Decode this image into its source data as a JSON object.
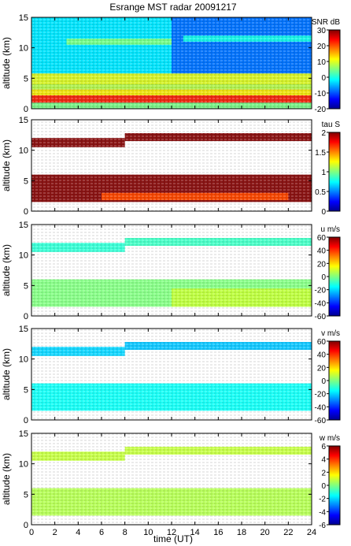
{
  "chart_data": {
    "type": "heatmap",
    "title": "Esrange MST radar 20091217",
    "xlabel": "time (UT)",
    "xlim": [
      0,
      24
    ],
    "x_ticks": [
      "0",
      "2",
      "4",
      "6",
      "8",
      "10",
      "12",
      "14",
      "16",
      "18",
      "20",
      "22",
      "24"
    ],
    "panels": [
      {
        "id": "snr",
        "ylabel": "altitude (km)",
        "ylim": [
          0,
          15
        ],
        "y_ticks": [
          "0",
          "5",
          "10",
          "15"
        ],
        "colorbar_label": "SNR dB",
        "clim": [
          -20,
          30
        ],
        "colorbar_ticks": [
          "-20",
          "-10",
          "0",
          "10",
          "20",
          "30"
        ],
        "background": "#2a5fd0",
        "layers": [
          {
            "x": [
              0,
              24
            ],
            "y": [
              0,
              1.0
            ],
            "value": 5
          },
          {
            "x": [
              0,
              24
            ],
            "y": [
              1.0,
              2.2
            ],
            "value": 22
          },
          {
            "x": [
              0,
              24
            ],
            "y": [
              2.2,
              3.2
            ],
            "value": 12
          },
          {
            "x": [
              0,
              24
            ],
            "y": [
              3.2,
              4.0
            ],
            "value": 8
          },
          {
            "x": [
              0,
              24
            ],
            "y": [
              4.0,
              5.8
            ],
            "value": 10
          },
          {
            "x": [
              0,
              12
            ],
            "y": [
              5.8,
              15
            ],
            "value": -2
          },
          {
            "x": [
              12,
              24
            ],
            "y": [
              5.8,
              15
            ],
            "value": -8
          },
          {
            "x": [
              3,
              12
            ],
            "y": [
              10.5,
              11.5
            ],
            "value": 5
          },
          {
            "x": [
              13,
              24
            ],
            "y": [
              11,
              12
            ],
            "value": 0
          }
        ]
      },
      {
        "id": "tau",
        "ylabel": "altitude (km)",
        "ylim": [
          0,
          15
        ],
        "y_ticks": [
          "0",
          "5",
          "10",
          "15"
        ],
        "colorbar_label": "tau S",
        "clim": [
          0,
          2
        ],
        "colorbar_ticks": [
          "0",
          "0.5",
          "1",
          "1.5",
          "2"
        ],
        "background": "#ffffff",
        "layers": [
          {
            "x": [
              0,
              24
            ],
            "y": [
              1.5,
              6.0
            ],
            "value": 2
          },
          {
            "x": [
              6,
              22
            ],
            "y": [
              1.8,
              3.0
            ],
            "value": 1.6
          },
          {
            "x": [
              0,
              8
            ],
            "y": [
              10.5,
              12.0
            ],
            "value": 2
          },
          {
            "x": [
              8,
              24
            ],
            "y": [
              11.5,
              12.8
            ],
            "value": 2
          }
        ]
      },
      {
        "id": "u",
        "ylabel": "altitude (km)",
        "ylim": [
          0,
          15
        ],
        "y_ticks": [
          "0",
          "5",
          "10",
          "15"
        ],
        "colorbar_label": "u m/s",
        "clim": [
          -60,
          60
        ],
        "colorbar_ticks": [
          "-60",
          "-40",
          "-20",
          "0",
          "20",
          "40",
          "60"
        ],
        "background": "#ffffff",
        "layers": [
          {
            "x": [
              0,
              24
            ],
            "y": [
              1.5,
              6.0
            ],
            "value": 0
          },
          {
            "x": [
              12,
              24
            ],
            "y": [
              1.5,
              4.5
            ],
            "value": 8
          },
          {
            "x": [
              0,
              8
            ],
            "y": [
              10.5,
              12.0
            ],
            "value": -10
          },
          {
            "x": [
              8,
              24
            ],
            "y": [
              11.5,
              12.8
            ],
            "value": -8
          }
        ]
      },
      {
        "id": "v",
        "ylabel": "altitude (km)",
        "ylim": [
          0,
          15
        ],
        "y_ticks": [
          "0",
          "5",
          "10",
          "15"
        ],
        "colorbar_label": "v m/s",
        "clim": [
          -60,
          60
        ],
        "colorbar_ticks": [
          "-60",
          "-40",
          "-20",
          "0",
          "20",
          "40",
          "60"
        ],
        "background": "#ffffff",
        "layers": [
          {
            "x": [
              0,
              24
            ],
            "y": [
              1.5,
              6.0
            ],
            "value": -14
          },
          {
            "x": [
              0,
              8
            ],
            "y": [
              10.5,
              12.0
            ],
            "value": -20
          },
          {
            "x": [
              8,
              24
            ],
            "y": [
              11.5,
              12.8
            ],
            "value": -22
          }
        ]
      },
      {
        "id": "w",
        "ylabel": "altitude (km)",
        "ylim": [
          0,
          15
        ],
        "y_ticks": [
          "0",
          "5",
          "10",
          "15"
        ],
        "colorbar_label": "w m/s",
        "clim": [
          -6,
          6
        ],
        "colorbar_ticks": [
          "-6",
          "-4",
          "-2",
          "0",
          "2",
          "4",
          "6"
        ],
        "background": "#ffffff",
        "layers": [
          {
            "x": [
              0,
              24
            ],
            "y": [
              1.5,
              6.0
            ],
            "value": 0.6
          },
          {
            "x": [
              0,
              8
            ],
            "y": [
              10.5,
              12.0
            ],
            "value": 0.8
          },
          {
            "x": [
              8,
              24
            ],
            "y": [
              11.5,
              12.8
            ],
            "value": 0.8
          }
        ]
      }
    ]
  }
}
